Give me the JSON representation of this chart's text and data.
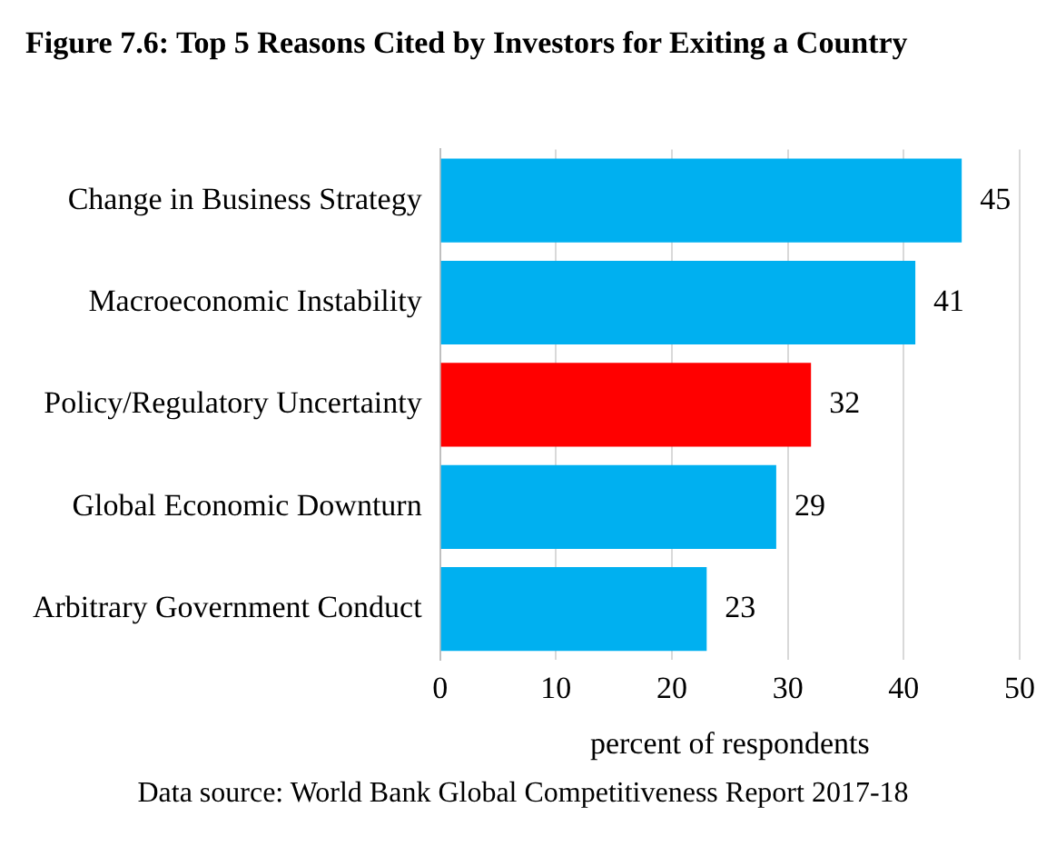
{
  "chart_data": {
    "type": "bar",
    "orientation": "horizontal",
    "title": "Figure 7.6: Top 5 Reasons Cited by Investors for Exiting a Country",
    "categories": [
      "Change in Business Strategy",
      "Macroeconomic Instability",
      "Policy/Regulatory Uncertainty",
      "Global Economic Downturn",
      "Arbitrary Government Conduct"
    ],
    "values": [
      45,
      41,
      32,
      29,
      23
    ],
    "colors": [
      "#00b0f0",
      "#00b0f0",
      "#ff0000",
      "#00b0f0",
      "#00b0f0"
    ],
    "xlim": [
      0,
      50
    ],
    "xticks": [
      0,
      10,
      20,
      30,
      40,
      50
    ],
    "xlabel": "percent of respondents",
    "grid": "x",
    "data_labels": true,
    "legend": false,
    "annotations": [
      "Data source: World Bank Global Competitiveness Report 2017-18"
    ]
  }
}
